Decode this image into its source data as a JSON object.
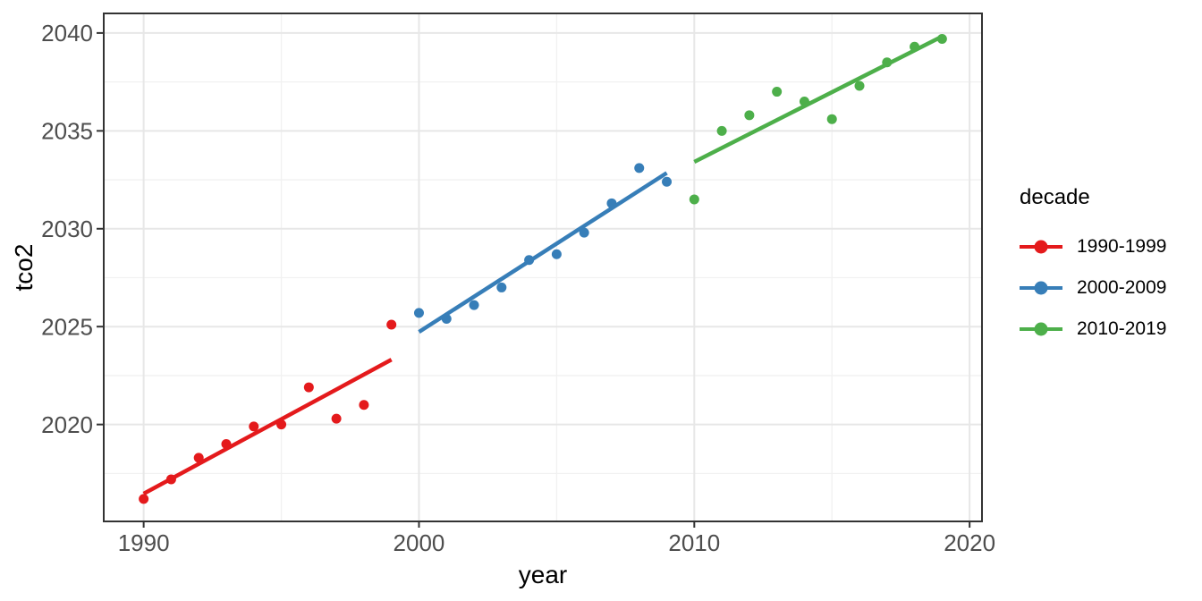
{
  "figure": {
    "background": "#ffffff"
  },
  "chart_data": {
    "type": "scatter",
    "title": "",
    "xlabel": "year",
    "ylabel": "tco2",
    "legend_title": "decade",
    "legend_position": "right",
    "grid": true,
    "x_range": [
      1988.55,
      2020.45
    ],
    "y_range": [
      2015.05,
      2041.0
    ],
    "x_ticks": [
      1990,
      2000,
      2010,
      2020
    ],
    "x_minor_ticks": [
      1995,
      2005,
      2015
    ],
    "y_ticks": [
      2020,
      2025,
      2030,
      2035,
      2040
    ],
    "y_minor_ticks": [
      2017.5,
      2022.5,
      2027.5,
      2032.5,
      2037.5
    ],
    "series": [
      {
        "name": "1990-1999",
        "color": "#E41A1C",
        "trend": "linear",
        "x": [
          1990,
          1991,
          1992,
          1993,
          1994,
          1995,
          1996,
          1997,
          1998,
          1999
        ],
        "y": [
          2016.2,
          2017.2,
          2018.3,
          2019.0,
          2019.9,
          2020.0,
          2021.9,
          2020.3,
          2021.0,
          2025.1
        ]
      },
      {
        "name": "2000-2009",
        "color": "#377EB8",
        "trend": "linear",
        "x": [
          2000,
          2001,
          2002,
          2003,
          2004,
          2005,
          2006,
          2007,
          2008,
          2009
        ],
        "y": [
          2025.7,
          2025.4,
          2026.1,
          2027.0,
          2028.4,
          2028.7,
          2029.8,
          2031.3,
          2033.1,
          2032.4
        ]
      },
      {
        "name": "2010-2019",
        "color": "#4DAF4A",
        "trend": "linear",
        "x": [
          2010,
          2011,
          2012,
          2013,
          2014,
          2015,
          2016,
          2017,
          2018,
          2019
        ],
        "y": [
          2031.5,
          2035.0,
          2035.8,
          2037.0,
          2036.5,
          2035.6,
          2037.3,
          2038.5,
          2039.3,
          2039.7
        ]
      }
    ],
    "theme": {
      "panel_background": "#ffffff",
      "panel_border": "#333333",
      "grid_major": "#e7e7e7",
      "grid_minor": "#f1f1f1",
      "tick_color": "#333333",
      "tick_label_color": "#4d4d4d",
      "point_radius": 5.5,
      "line_width": 4.5
    }
  }
}
